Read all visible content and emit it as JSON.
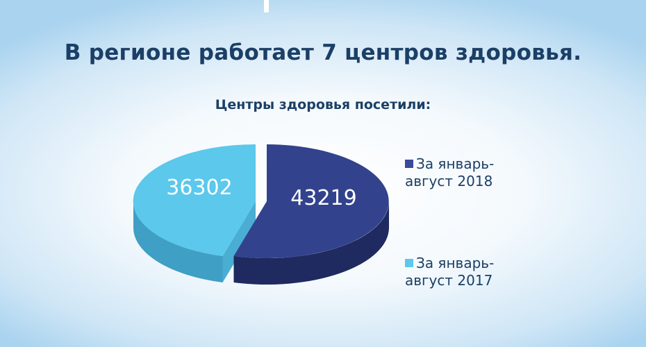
{
  "title": "В регионе работает 7 центров здоровья.",
  "chart_data": {
    "type": "pie",
    "title": "Центры здоровья посетили:",
    "three_d": true,
    "legend_position": "right",
    "categories": [
      "За январь-август 2018",
      "За январь-август 2017"
    ],
    "values": [
      43219,
      36302
    ],
    "data_labels": [
      "43219",
      "36302"
    ],
    "legend": [
      {
        "line1": "За январь-",
        "line2": "август 2018",
        "color": "#3a4b9c"
      },
      {
        "line1": "За январь-",
        "line2": "август 2017",
        "color": "#5bc8ec"
      }
    ],
    "colors": {
      "2018_top": "#33428c",
      "2018_side": "#1e2a60",
      "2017_top": "#5bc8ec",
      "2017_side": "#3f9fc4"
    }
  }
}
